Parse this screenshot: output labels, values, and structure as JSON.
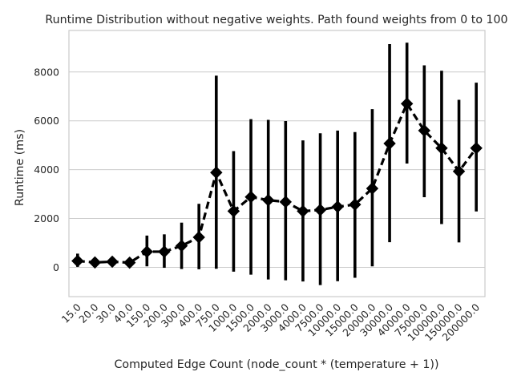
{
  "chart_data": {
    "type": "line",
    "title": "Runtime Distribution without negative weights. Path found weights from 0 to 100",
    "xlabel": "Computed Edge Count (node_count * (temperature + 1))",
    "ylabel": "Runtime (ms)",
    "categories": [
      "15.0",
      "20.0",
      "30.0",
      "40.0",
      "150.0",
      "200.0",
      "300.0",
      "400.0",
      "750.0",
      "1000.0",
      "1500.0",
      "2000.0",
      "3000.0",
      "4000.0",
      "7500.0",
      "10000.0",
      "15000.0",
      "20000.0",
      "30000.0",
      "40000.0",
      "75000.0",
      "100000.0",
      "150000.0",
      "200000.0"
    ],
    "y_ticks": [
      "0",
      "2000",
      "4000",
      "6000",
      "8000"
    ],
    "ylim": [
      -1200,
      9700
    ],
    "series": [
      {
        "values": [
          260,
          200,
          230,
          190,
          640,
          640,
          880,
          1230,
          3880,
          2300,
          2880,
          2750,
          2680,
          2300,
          2350,
          2480,
          2570,
          3230,
          5070,
          6700,
          5600,
          4880,
          3930,
          4880
        ],
        "err_low": [
          20,
          130,
          190,
          150,
          40,
          -20,
          -70,
          -80,
          -60,
          -180,
          -300,
          -500,
          -530,
          -580,
          -730,
          -570,
          -430,
          40,
          1030,
          4250,
          2870,
          1770,
          1020,
          2290
        ],
        "err_high": [
          560,
          310,
          280,
          240,
          1300,
          1350,
          1830,
          2600,
          7850,
          4760,
          6070,
          6040,
          5990,
          5200,
          5490,
          5600,
          5540,
          6480,
          9140,
          9200,
          8270,
          8050,
          6860,
          7560
        ],
        "color": "#000000",
        "marker": "diamond",
        "linestyle": "dashed"
      }
    ],
    "grid": "horizontal",
    "legend": "none"
  }
}
